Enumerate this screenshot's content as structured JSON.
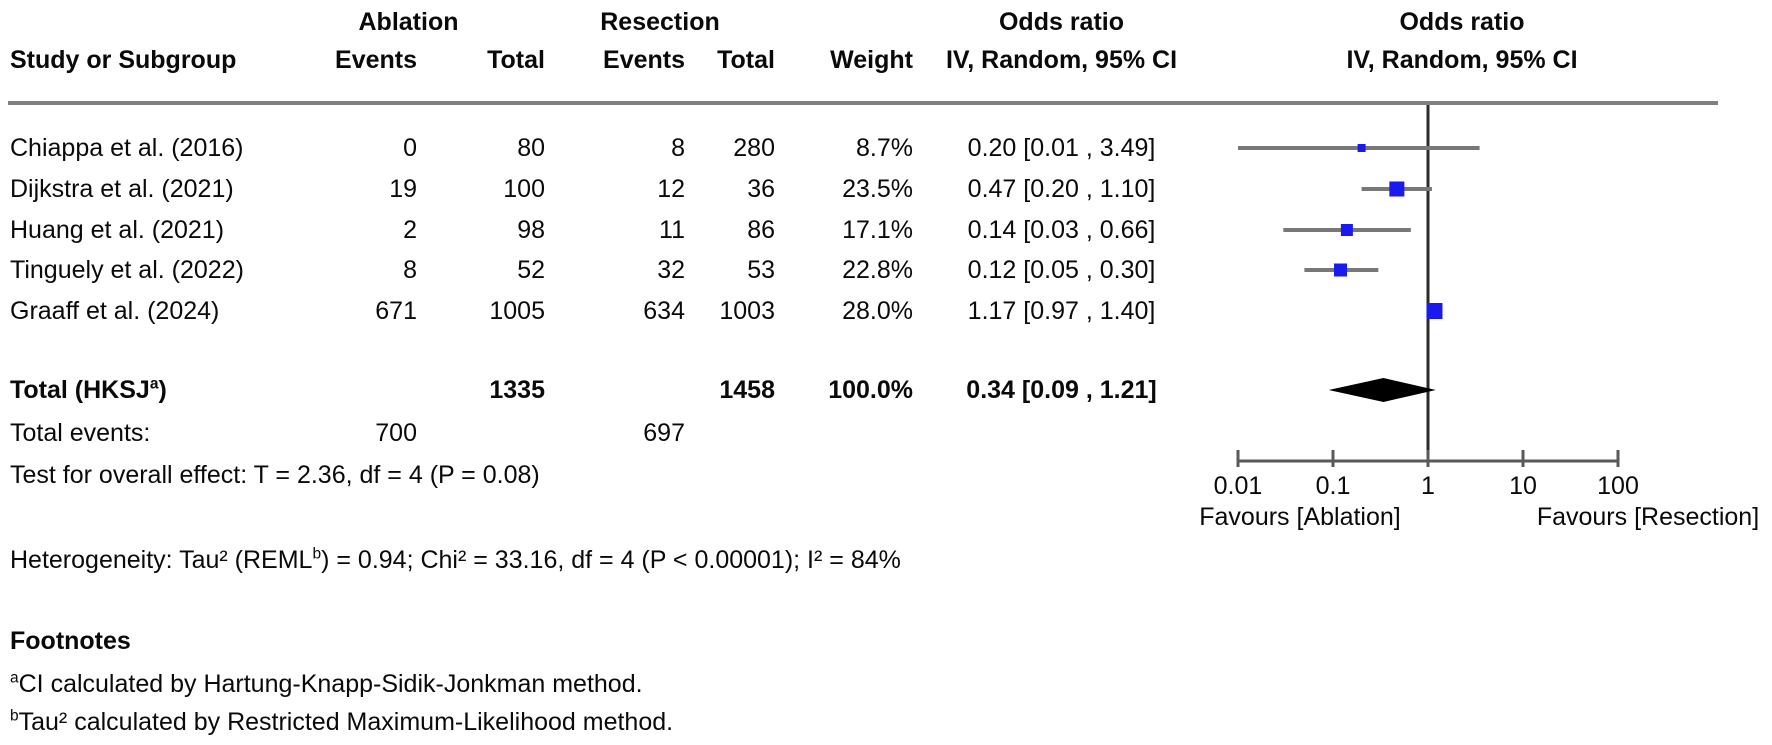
{
  "header": {
    "study_col": "Study or Subgroup",
    "group1_label": "Ablation",
    "group2_label": "Resection",
    "events_col": "Events",
    "total_col": "Total",
    "events_col2": "Events",
    "total_col2": "Total",
    "weight_col": "Weight",
    "or_text_title": "Odds ratio",
    "or_text_subtitle": "IV, Random, 95% CI",
    "or_plot_title": "Odds ratio",
    "or_plot_subtitle": "IV, Random, 95% CI"
  },
  "rows": [
    {
      "name": "Chiappa et al. (2016)",
      "events1": "0",
      "total1": "80",
      "events2": "8",
      "total2": "280",
      "weight": "8.7%",
      "or_ci": "0.20 [0.01 , 3.49]"
    },
    {
      "name": "Dijkstra et al. (2021)",
      "events1": "19",
      "total1": "100",
      "events2": "12",
      "total2": "36",
      "weight": "23.5%",
      "or_ci": "0.47 [0.20 , 1.10]"
    },
    {
      "name": "Huang et al. (2021)",
      "events1": "2",
      "total1": "98",
      "events2": "11",
      "total2": "86",
      "weight": "17.1%",
      "or_ci": "0.14 [0.03 , 0.66]"
    },
    {
      "name": "Tinguely et al. (2022)",
      "events1": "8",
      "total1": "52",
      "events2": "32",
      "total2": "53",
      "weight": "22.8%",
      "or_ci": "0.12 [0.05 , 0.30]"
    },
    {
      "name": "Graaff et al. (2024)",
      "events1": "671",
      "total1": "1005",
      "events2": "634",
      "total2": "1003",
      "weight": "28.0%",
      "or_ci": "1.17 [0.97 , 1.40]"
    }
  ],
  "summary_row": {
    "label_pre": "Total (HKSJ",
    "label_sup": "a",
    "label_close": ")",
    "total1": "1335",
    "total2": "1458",
    "weight": "100.0%",
    "or_ci": "0.34 [0.09 , 1.21]"
  },
  "totals": {
    "label": "Total events:",
    "events1": "700",
    "events2": "697"
  },
  "overall_effect": "Test for overall effect: T = 2.36, df = 4 (P = 0.08)",
  "heterogeneity": {
    "pre": "Heterogeneity: Tau² (REML",
    "sup": "b",
    "post": ") = 0.94; Chi² = 33.16, df = 4 (P < 0.00001); I² = 84%"
  },
  "footnotes": {
    "title": "Footnotes",
    "items": [
      {
        "sup": "a",
        "text": "CI calculated by Hartung-Knapp-Sidik-Jonkman method."
      },
      {
        "sup": "b",
        "text": "Tau² calculated by Restricted Maximum-Likelihood method."
      }
    ]
  },
  "axis": {
    "tick_labels": [
      "0.01",
      "0.1",
      "1",
      "10",
      "100"
    ],
    "favours_left": "Favours [Ablation]",
    "favours_right": "Favours [Resection]"
  },
  "colors": {
    "marker_blue": "#1a1aee",
    "ci_gray": "#787878",
    "axis_gray": "#5a5a5a",
    "rule_gray": "#808080",
    "ref_line": "#2b2b2b",
    "diamond_black": "#000000"
  },
  "chart_data": {
    "type": "scatter",
    "subtype": "forest_plot",
    "effect_measure": "Odds ratio, IV, Random, 95% CI",
    "x_scale": "log",
    "x_range": [
      0.01,
      100
    ],
    "x_ticks": [
      0.01,
      0.1,
      1,
      10,
      100
    ],
    "reference_line": 1,
    "xlabel_left": "Favours [Ablation]",
    "xlabel_right": "Favours [Resection]",
    "series": [
      {
        "study": "Chiappa et al. (2016)",
        "or": 0.2,
        "ci_low": 0.01,
        "ci_high": 3.49,
        "weight_pct": 8.7,
        "marker_size": 8
      },
      {
        "study": "Dijkstra et al. (2021)",
        "or": 0.47,
        "ci_low": 0.2,
        "ci_high": 1.1,
        "weight_pct": 23.5,
        "marker_size": 15
      },
      {
        "study": "Huang et al. (2021)",
        "or": 0.14,
        "ci_low": 0.03,
        "ci_high": 0.66,
        "weight_pct": 17.1,
        "marker_size": 12
      },
      {
        "study": "Tinguely et al. (2022)",
        "or": 0.12,
        "ci_low": 0.05,
        "ci_high": 0.3,
        "weight_pct": 22.8,
        "marker_size": 13
      },
      {
        "study": "Graaff et al. (2024)",
        "or": 1.17,
        "ci_low": 0.97,
        "ci_high": 1.4,
        "weight_pct": 28.0,
        "marker_size": 16
      }
    ],
    "summary": {
      "label": "Total (HKSJ)",
      "or": 0.34,
      "ci_low": 0.09,
      "ci_high": 1.21,
      "weight_pct": 100.0
    }
  }
}
